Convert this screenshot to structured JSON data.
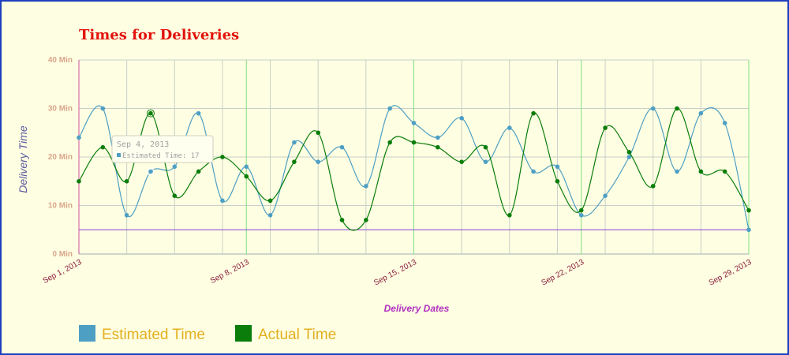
{
  "chart_data": {
    "type": "line",
    "title": "Times for Deliveries",
    "xlabel": "Delivery Dates",
    "ylabel": "Delivery Time",
    "ylim": [
      0,
      40
    ],
    "yticks": [
      {
        "v": 0,
        "label": "0 Min"
      },
      {
        "v": 10,
        "label": "10 Min"
      },
      {
        "v": 20,
        "label": "20 Min"
      },
      {
        "v": 30,
        "label": "30 Min"
      },
      {
        "v": 40,
        "label": "40 Min"
      }
    ],
    "xticks": [
      {
        "i": 0,
        "label": "Sep 1, 2013"
      },
      {
        "i": 7,
        "label": "Sep 8, 2013"
      },
      {
        "i": 14,
        "label": "Sep 15, 2013"
      },
      {
        "i": 21,
        "label": "Sep 22, 2013"
      },
      {
        "i": 28,
        "label": "Sep 29, 2013"
      }
    ],
    "x": [
      "2013-09-01",
      "2013-09-02",
      "2013-09-03",
      "2013-09-04",
      "2013-09-05",
      "2013-09-06",
      "2013-09-07",
      "2013-09-08",
      "2013-09-09",
      "2013-09-10",
      "2013-09-11",
      "2013-09-12",
      "2013-09-13",
      "2013-09-14",
      "2013-09-15",
      "2013-09-16",
      "2013-09-17",
      "2013-09-18",
      "2013-09-19",
      "2013-09-20",
      "2013-09-21",
      "2013-09-22",
      "2013-09-23",
      "2013-09-24",
      "2013-09-25",
      "2013-09-26",
      "2013-09-27",
      "2013-09-28",
      "2013-09-29"
    ],
    "series": [
      {
        "name": "Estimated Time",
        "color": "#4e9fc4",
        "values": [
          24,
          30,
          8,
          17,
          18,
          29,
          11,
          18,
          8,
          23,
          19,
          22,
          14,
          30,
          27,
          24,
          28,
          19,
          26,
          17,
          18,
          8,
          12,
          20,
          30,
          17,
          29,
          27,
          5
        ]
      },
      {
        "name": "Actual Time",
        "color": "#0a7d0a",
        "values": [
          15,
          22,
          15,
          29,
          12,
          17,
          20,
          16,
          11,
          19,
          25,
          7,
          7,
          23,
          23,
          22,
          19,
          22,
          8,
          29,
          15,
          9,
          26,
          21,
          14,
          30,
          17,
          17,
          9
        ]
      }
    ],
    "reference_line": {
      "value": 5,
      "color": "#8a3fd8"
    },
    "tooltip": {
      "title": "Sep 4, 2013",
      "text": "Estimated Time: 17",
      "index": 3
    },
    "legend_placement": "bottom-left",
    "grid": true
  }
}
